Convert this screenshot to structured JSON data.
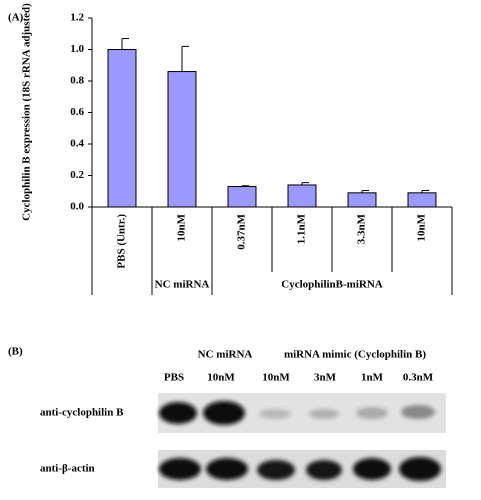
{
  "chart_data": {
    "type": "bar",
    "panel_label": "(A)",
    "y_label": "Cyclophilin B expression (18S rRNA adjusted)",
    "categories": [
      "PBS (Untr.)",
      "10nM",
      "0.37nM",
      "1.1nM",
      "3.3nM",
      "10nM"
    ],
    "groups": [
      {
        "label": "NC miRNA",
        "span": [
          1,
          1
        ]
      },
      {
        "label": "CyclophilinB-miRNA",
        "span": [
          2,
          5
        ]
      }
    ],
    "values": [
      1.0,
      0.86,
      0.13,
      0.14,
      0.09,
      0.09
    ],
    "errors": [
      0.07,
      0.16,
      0.005,
      0.015,
      0.015,
      0.015
    ],
    "color": "#9999ff",
    "ylim": [
      0,
      1.2
    ],
    "yticks": [
      {
        "value": 0,
        "label": "0.0"
      },
      {
        "value": 0.2,
        "label": "0.2"
      },
      {
        "value": 0.4,
        "label": "0.4"
      },
      {
        "value": 0.6,
        "label": "0.6"
      },
      {
        "value": 0.8,
        "label": "0.8"
      },
      {
        "value": 1.0,
        "label": "1.0"
      },
      {
        "value": 1.2,
        "label": "1.2"
      }
    ]
  },
  "blot": {
    "panel_label": "(B)",
    "group_headers": [
      "NC miRNA",
      "miRNA mimic (Cyclophilin B)"
    ],
    "lanes": [
      "PBS",
      "10nM",
      "10nM",
      "3nM",
      "1nM",
      "0.3nM"
    ],
    "rows": [
      "anti-cyclophilin B",
      "anti-β-actin"
    ]
  }
}
